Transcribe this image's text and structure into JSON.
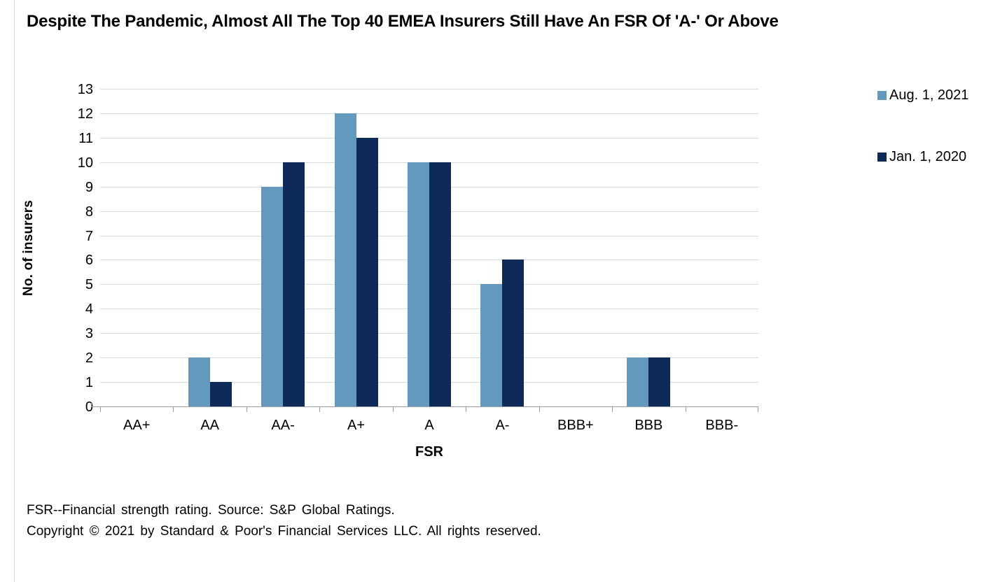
{
  "title": "Despite The Pandemic, Almost All The Top 40 EMEA Insurers Still Have An FSR Of 'A-' Or Above",
  "footnote": {
    "line1": "FSR--Financial strength rating. Source: S&P Global Ratings.",
    "line2": "Copyright © 2021 by Standard & Poor's Financial Services LLC. All rights reserved."
  },
  "colors": {
    "series_aug_2021": "#6299BC",
    "series_jan_2020": "#0E2A58",
    "gridline": "#D9D9D9",
    "axis_line": "#9E9E9E",
    "page_border": "#D9D9D9"
  },
  "chart_data": {
    "type": "bar",
    "title": "Despite The Pandemic, Almost All The Top 40 EMEA Insurers Still Have An FSR Of 'A-' Or Above",
    "xlabel": "FSR",
    "ylabel": "No. of insurers",
    "ylim": [
      0,
      13
    ],
    "ytick_step": 1,
    "yticks": [
      0,
      1,
      2,
      3,
      4,
      5,
      6,
      7,
      8,
      9,
      10,
      11,
      12,
      13
    ],
    "grid": true,
    "legend_position": "right",
    "categories": [
      "AA+",
      "AA",
      "AA-",
      "A+",
      "A",
      "A-",
      "BBB+",
      "BBB",
      "BBB-"
    ],
    "series": [
      {
        "name": "Aug. 1, 2021",
        "color": "#6299BC",
        "values": [
          0,
          2,
          9,
          12,
          10,
          5,
          0,
          2,
          0
        ]
      },
      {
        "name": "Jan. 1, 2020",
        "color": "#0E2A58",
        "values": [
          0,
          1,
          10,
          11,
          10,
          6,
          0,
          2,
          0
        ]
      }
    ]
  }
}
